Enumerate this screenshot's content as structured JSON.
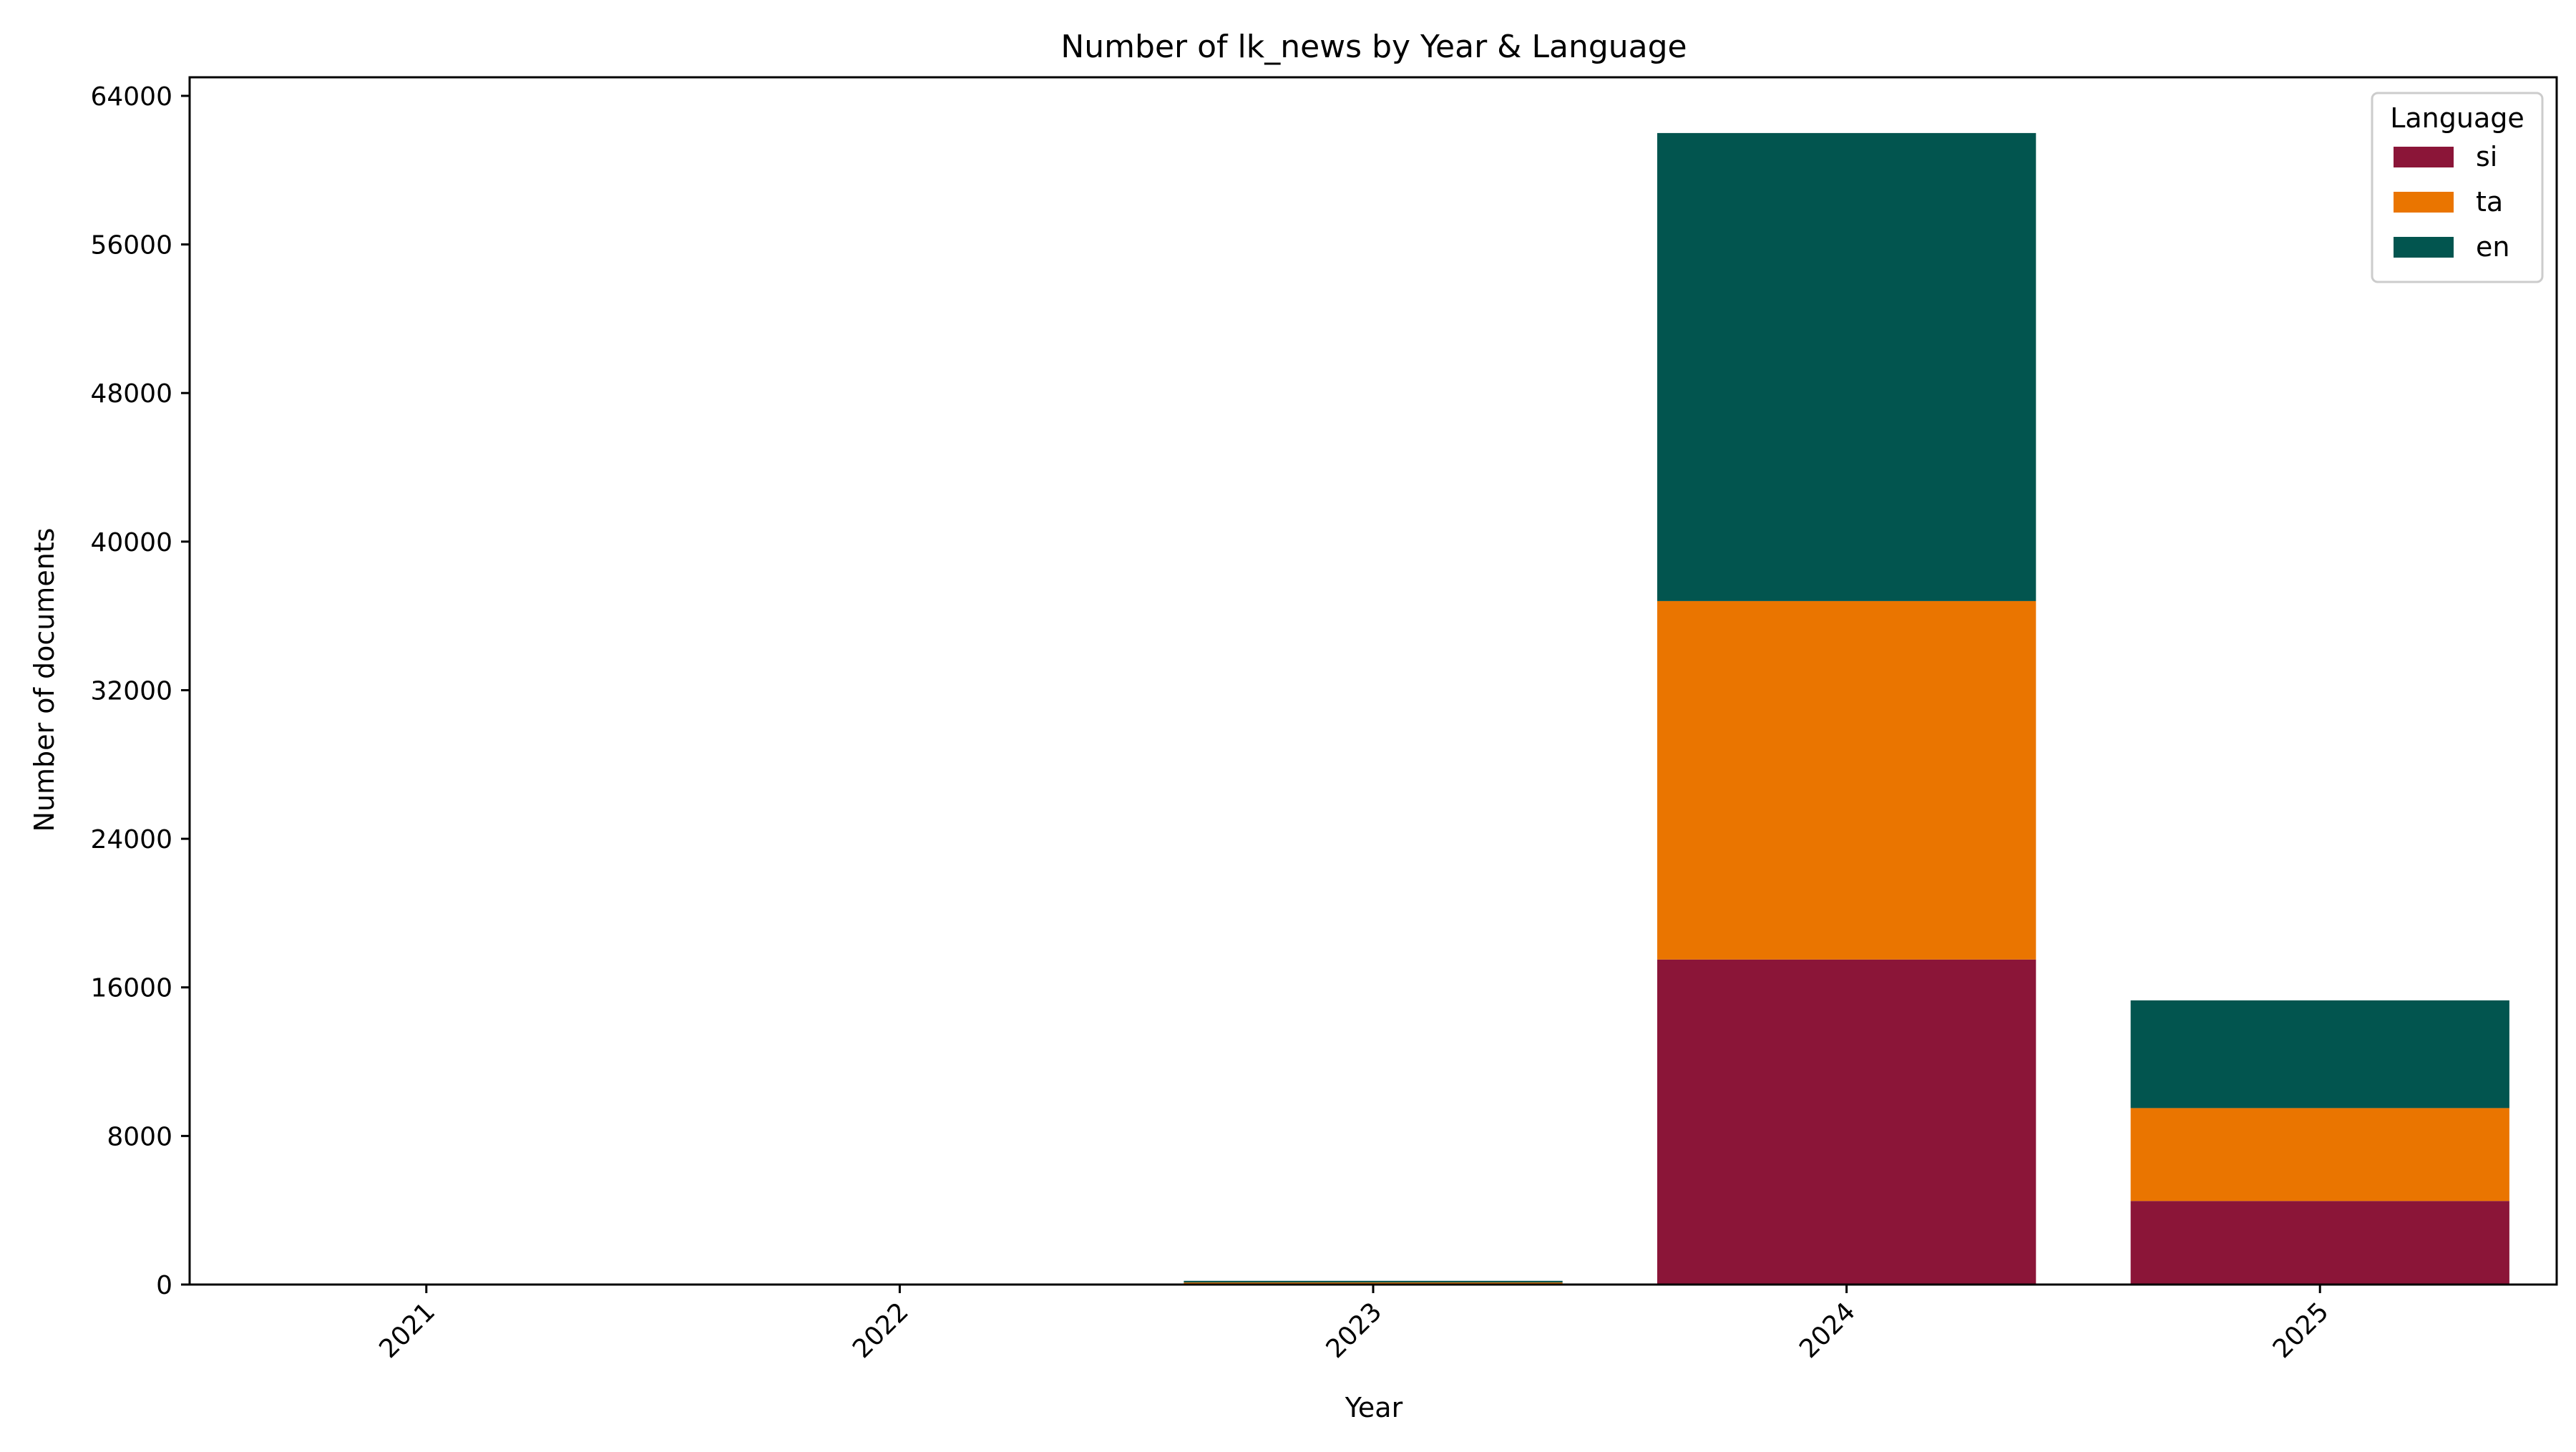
{
  "chart_data": {
    "type": "bar",
    "stacked": true,
    "title": "Number of lk_news by Year & Language",
    "xlabel": "Year",
    "ylabel": "Number of documents",
    "categories": [
      "2021",
      "2022",
      "2023",
      "2024",
      "2025"
    ],
    "ylim": [
      0,
      65000
    ],
    "yticks": [
      0,
      8000,
      16000,
      24000,
      32000,
      40000,
      48000,
      56000,
      64000
    ],
    "grid": false,
    "legend": {
      "title": "Language",
      "placement": "top-right"
    },
    "series": [
      {
        "name": "si",
        "color": "#8b1538",
        "values": [
          0,
          0,
          60,
          17500,
          4500
        ]
      },
      {
        "name": "ta",
        "color": "#ea7500",
        "values": [
          0,
          0,
          50,
          19300,
          5000
        ]
      },
      {
        "name": "en",
        "color": "#02554f",
        "values": [
          0,
          0,
          90,
          25200,
          5800
        ]
      }
    ]
  }
}
